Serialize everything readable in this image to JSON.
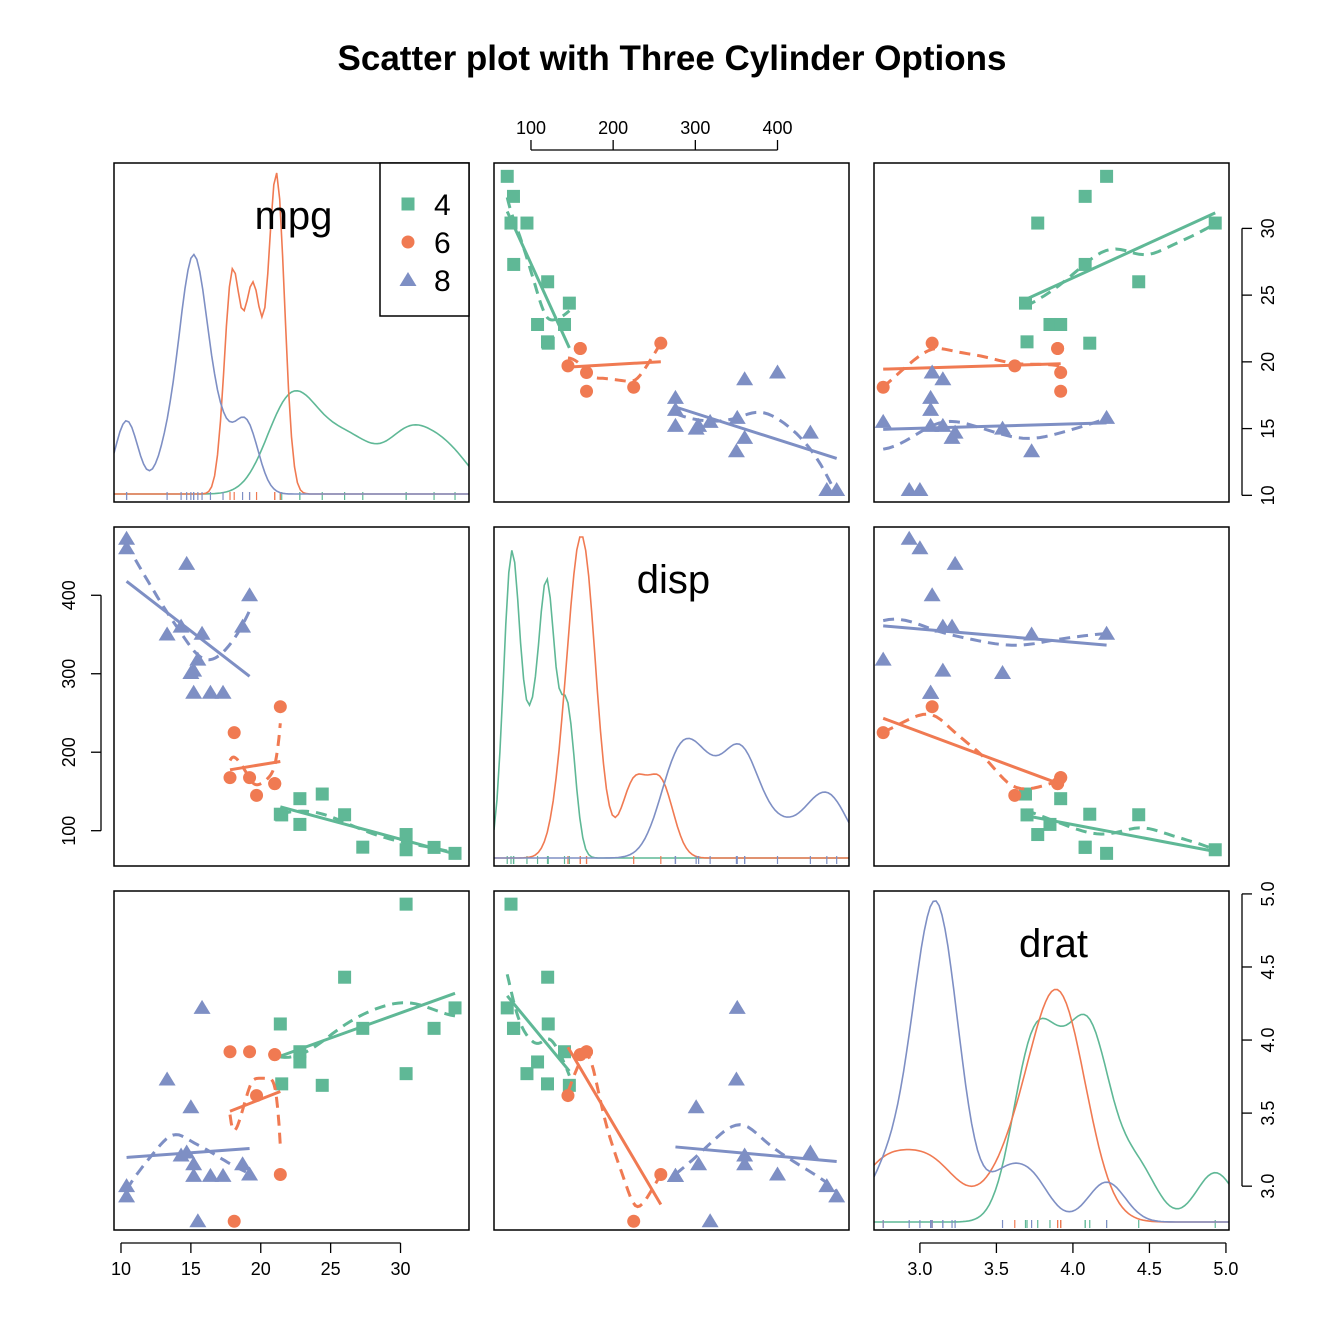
{
  "chart_data": {
    "type": "scatter",
    "title": "Scatter plot with Three Cylinder Options",
    "variables": [
      "mpg",
      "disp",
      "drat"
    ],
    "axes": {
      "mpg": {
        "ticks": [
          10,
          15,
          20,
          25,
          30
        ],
        "range": [
          9.5,
          34.9
        ]
      },
      "disp": {
        "ticks": [
          100,
          200,
          300,
          400
        ],
        "range": [
          55,
          487
        ]
      },
      "drat": {
        "ticks": [
          3.0,
          3.5,
          4.0,
          4.5,
          5.0
        ],
        "range": [
          2.7,
          5.02
        ]
      }
    },
    "legend": {
      "position": "top-right",
      "entries": [
        "4",
        "6",
        "8"
      ]
    },
    "colors": {
      "4": "#5fb896",
      "6": "#f07a52",
      "8": "#7e8fc4"
    },
    "series": [
      {
        "name": "4",
        "marker": "square",
        "mpg": [
          22.8,
          24.4,
          22.8,
          32.4,
          30.4,
          33.9,
          21.5,
          27.3,
          26.0,
          30.4,
          21.4
        ],
        "disp": [
          108,
          146.7,
          140.8,
          78.7,
          75.7,
          71.1,
          120.1,
          79,
          120.3,
          95.1,
          121
        ],
        "drat": [
          3.85,
          3.69,
          3.92,
          4.08,
          4.93,
          4.22,
          3.7,
          4.08,
          4.43,
          3.77,
          4.11
        ]
      },
      {
        "name": "6",
        "marker": "circle",
        "mpg": [
          21.0,
          21.0,
          21.4,
          18.1,
          19.2,
          17.8,
          19.7
        ],
        "disp": [
          160,
          160,
          258,
          225,
          167.6,
          167.6,
          145
        ],
        "drat": [
          3.9,
          3.9,
          3.08,
          2.76,
          3.92,
          3.92,
          3.62
        ]
      },
      {
        "name": "8",
        "marker": "triangle",
        "mpg": [
          18.7,
          14.3,
          16.4,
          17.3,
          15.2,
          10.4,
          10.4,
          14.7,
          15.5,
          15.2,
          13.3,
          19.2,
          15.8,
          15.0
        ],
        "disp": [
          360,
          360,
          275.8,
          275.8,
          275.8,
          472,
          460,
          440,
          318,
          304,
          350,
          400,
          351,
          301
        ],
        "drat": [
          3.15,
          3.21,
          3.07,
          3.07,
          3.07,
          2.93,
          3.0,
          3.23,
          2.76,
          3.15,
          3.73,
          3.08,
          4.22,
          3.54
        ]
      }
    ]
  }
}
